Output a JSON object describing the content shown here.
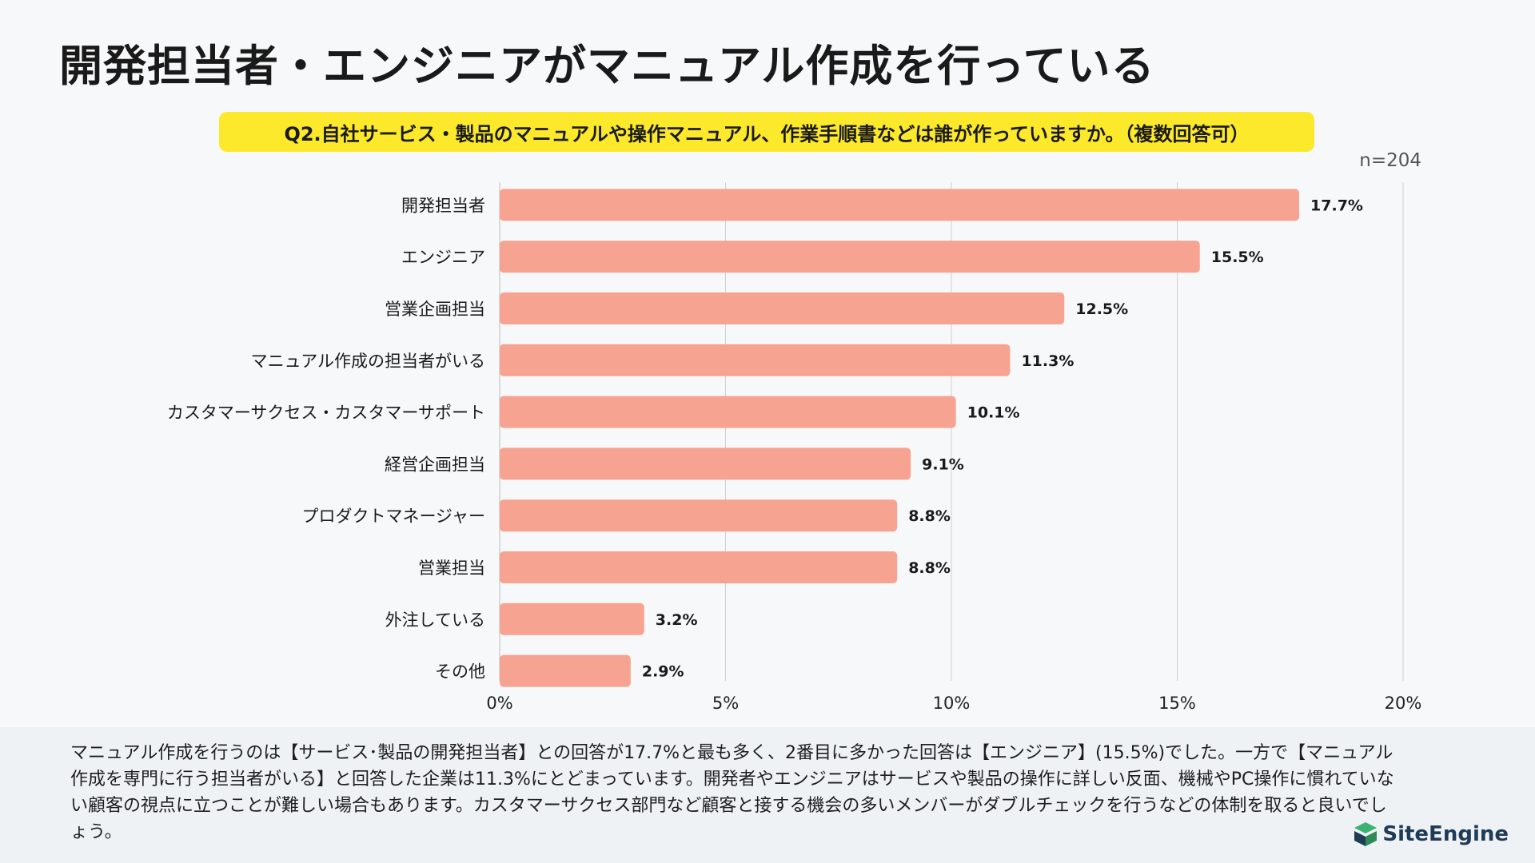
{
  "page_title": "開発担当者・エンジニアがマニュアル作成を行っている",
  "question": "Q2.自社サービス・製品のマニュアルや操作マニュアル、作業手順書などは誰が作っていますか。（複数回答可）",
  "sample_size": "n=204",
  "chart_data": {
    "type": "bar",
    "orientation": "horizontal",
    "categories": [
      "開発担当者",
      "エンジニア",
      "営業企画担当",
      "マニュアル作成の担当者がいる",
      "カスタマーサクセス・カスタマーサポート",
      "経営企画担当",
      "プロダクトマネージャー",
      "営業担当",
      "外注している",
      "その他"
    ],
    "values": [
      17.7,
      15.5,
      12.5,
      11.3,
      10.1,
      9.1,
      8.8,
      8.8,
      3.2,
      2.9
    ],
    "value_labels": [
      "17.7%",
      "15.5%",
      "12.5%",
      "11.3%",
      "10.1%",
      "9.1%",
      "8.8%",
      "8.8%",
      "3.2%",
      "2.9%"
    ],
    "x_ticks": [
      0,
      5,
      10,
      15,
      20
    ],
    "x_tick_labels": [
      "0%",
      "5%",
      "10%",
      "15%",
      "20%"
    ],
    "xlim": [
      0,
      20
    ],
    "bar_color": "#f7a392",
    "grid_color": "#d0d0d0"
  },
  "summary": "マニュアル作成を行うのは【サービス･製品の開発担当者】との回答が17.7%と最も多く、2番目に多かった回答は【エンジニア】(15.5%)でした。一方で【マニュアル作成を専門に行う担当者がいる】と回答した企業は11.3%にとどまっています。開発者やエンジニアはサービスや製品の操作に詳しい反面、機械やPC操作に慣れていない顧客の視点に立つことが難しい場合もあります。カスタマーサクセス部門など顧客と接する機会の多いメンバーがダブルチェックを行うなどの体制を取ると良いでしょう。",
  "logo": {
    "text": "SiteEngine",
    "icon": "siteengine-logo-icon",
    "colors": [
      "#1f3b57",
      "#3cb371"
    ]
  }
}
